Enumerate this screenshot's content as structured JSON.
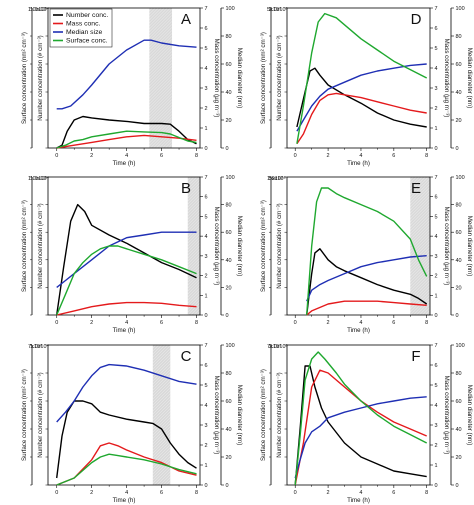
{
  "figure": {
    "axis_labels": {
      "x": "Time (h)",
      "y_left_outer": "Surface concentration (nm² cm⁻³)",
      "y_left_inner": "Number concentration (# cm⁻³)",
      "y_right_inner": "Mass concentration (µg m⁻³)",
      "y_right_outer": "Median diameter (nm)"
    },
    "legend": [
      "Number conc.",
      "Mass conc.",
      "Median size",
      "Surface conc."
    ],
    "colors": {
      "number": "#000000",
      "mass": "#e41a1c",
      "median": "#1f2fb4",
      "surface": "#1fa82f",
      "shade": "#cfcfcf"
    },
    "x_ticks": [
      "0",
      "2",
      "4",
      "6",
      "8"
    ],
    "right_inner_ticks": [
      "0",
      "1",
      "2",
      "3",
      "4",
      "5",
      "6",
      "7"
    ],
    "right_outer_ticks": [
      "0",
      "20",
      "40",
      "60",
      "80",
      "100"
    ]
  },
  "chart_data": [
    {
      "type": "line",
      "panel": "A",
      "xlabel": "Time (h)",
      "xlim": [
        -0.5,
        8.2
      ],
      "shade": [
        5.3,
        6.6
      ],
      "surface_top_label": "1.0x10⁸",
      "number_top_label": "1.0x10⁴",
      "series": [
        {
          "name": "Number conc.",
          "x": [
            0,
            0.3,
            0.6,
            1,
            1.5,
            2,
            3,
            4,
            5,
            6,
            6.5,
            7,
            7.5,
            8
          ],
          "values": [
            0,
            0.02,
            0.12,
            0.2,
            0.225,
            0.215,
            0.2,
            0.19,
            0.175,
            0.175,
            0.17,
            0.12,
            0.06,
            0.03
          ]
        },
        {
          "name": "Mass conc.",
          "x": [
            0,
            1,
            2,
            3,
            4,
            5,
            6,
            7,
            8
          ],
          "values": [
            0,
            0.02,
            0.04,
            0.06,
            0.08,
            0.09,
            0.08,
            0.07,
            0.055
          ]
        },
        {
          "name": "Median size",
          "x": [
            0,
            0.3,
            0.8,
            1.5,
            2,
            3,
            4,
            5,
            5.4,
            6,
            7,
            8
          ],
          "values": [
            0.28,
            0.28,
            0.3,
            0.38,
            0.45,
            0.6,
            0.7,
            0.77,
            0.77,
            0.75,
            0.73,
            0.72
          ]
        },
        {
          "name": "Surface conc.",
          "x": [
            0,
            0.5,
            1,
            1.5,
            2,
            3,
            4,
            5,
            6,
            6.5,
            7,
            7.5,
            8
          ],
          "values": [
            0,
            0.02,
            0.05,
            0.06,
            0.08,
            0.1,
            0.12,
            0.115,
            0.11,
            0.1,
            0.075,
            0.05,
            0.04
          ]
        }
      ]
    },
    {
      "type": "line",
      "panel": "D",
      "xlabel": "Time (h)",
      "xlim": [
        -0.5,
        8.2
      ],
      "surface_top_label": "5x10⁹",
      "number_top_label": "2.0x10⁵",
      "series": [
        {
          "name": "Number conc.",
          "x": [
            0.1,
            0.5,
            0.9,
            1.2,
            1.5,
            2,
            3,
            4,
            5,
            6,
            7,
            8
          ],
          "values": [
            0.15,
            0.35,
            0.55,
            0.57,
            0.52,
            0.45,
            0.38,
            0.32,
            0.25,
            0.2,
            0.17,
            0.15
          ]
        },
        {
          "name": "Mass conc.",
          "x": [
            0.1,
            0.5,
            1,
            1.5,
            2,
            2.5,
            3,
            4,
            5,
            6,
            7,
            8
          ],
          "values": [
            0.03,
            0.1,
            0.24,
            0.34,
            0.38,
            0.39,
            0.38,
            0.36,
            0.33,
            0.3,
            0.27,
            0.25
          ]
        },
        {
          "name": "Median size",
          "x": [
            0.1,
            0.5,
            1,
            1.5,
            2,
            3,
            4,
            5,
            6,
            7,
            8
          ],
          "values": [
            0.12,
            0.2,
            0.3,
            0.37,
            0.42,
            0.47,
            0.52,
            0.55,
            0.57,
            0.59,
            0.6
          ]
        },
        {
          "name": "Surface conc.",
          "x": [
            0.1,
            0.5,
            1,
            1.4,
            1.8,
            2.5,
            3,
            4,
            5,
            6,
            7,
            8
          ],
          "values": [
            0.03,
            0.3,
            0.68,
            0.9,
            0.96,
            0.93,
            0.88,
            0.78,
            0.7,
            0.62,
            0.56,
            0.5
          ]
        }
      ]
    },
    {
      "type": "line",
      "panel": "B",
      "xlabel": "Time (h)",
      "xlim": [
        -0.5,
        8.2
      ],
      "shade": [
        7.5,
        8.2
      ],
      "surface_top_label": "1.0x10⁸",
      "number_top_label": "1.0x10⁴",
      "series": [
        {
          "name": "Number conc.",
          "x": [
            0,
            0.4,
            0.8,
            1.2,
            1.6,
            2,
            3,
            4,
            5,
            6,
            7,
            8
          ],
          "values": [
            0,
            0.35,
            0.68,
            0.8,
            0.75,
            0.65,
            0.58,
            0.52,
            0.45,
            0.38,
            0.33,
            0.27
          ]
        },
        {
          "name": "Mass conc.",
          "x": [
            0,
            1,
            2,
            3,
            4,
            5,
            6,
            7,
            8
          ],
          "values": [
            0,
            0.03,
            0.06,
            0.08,
            0.09,
            0.09,
            0.085,
            0.07,
            0.06
          ]
        },
        {
          "name": "Median size",
          "x": [
            0,
            0.5,
            1,
            2,
            3,
            4,
            5,
            6,
            7,
            8
          ],
          "values": [
            0.2,
            0.25,
            0.3,
            0.4,
            0.5,
            0.56,
            0.58,
            0.6,
            0.6,
            0.6
          ]
        },
        {
          "name": "Surface conc.",
          "x": [
            0,
            0.5,
            1,
            1.5,
            2,
            2.5,
            3,
            3.5,
            4,
            5,
            6,
            7,
            8
          ],
          "values": [
            0,
            0.15,
            0.3,
            0.38,
            0.44,
            0.48,
            0.5,
            0.5,
            0.48,
            0.44,
            0.4,
            0.35,
            0.3
          ]
        }
      ]
    },
    {
      "type": "line",
      "panel": "E",
      "xlabel": "Time (h)",
      "xlim": [
        -0.5,
        8.2
      ],
      "shade": [
        7.0,
        8.2
      ],
      "surface_top_label": "1.0x10⁸",
      "number_top_label": "5x10³",
      "series": [
        {
          "name": "Number conc.",
          "x": [
            0.7,
            1,
            1.2,
            1.5,
            2,
            2.5,
            3,
            4,
            5,
            6,
            7,
            7.5,
            8
          ],
          "values": [
            0,
            0.3,
            0.45,
            0.48,
            0.4,
            0.35,
            0.32,
            0.27,
            0.22,
            0.18,
            0.15,
            0.12,
            0.08
          ]
        },
        {
          "name": "Mass conc.",
          "x": [
            0.7,
            1,
            2,
            3,
            4,
            5,
            6,
            7,
            8
          ],
          "values": [
            0,
            0.03,
            0.08,
            0.1,
            0.1,
            0.1,
            0.09,
            0.08,
            0.07
          ]
        },
        {
          "name": "Median size",
          "x": [
            0.7,
            1,
            1.5,
            2,
            3,
            4,
            5,
            6,
            7,
            8
          ],
          "values": [
            0.1,
            0.18,
            0.22,
            0.25,
            0.3,
            0.35,
            0.38,
            0.4,
            0.42,
            0.43
          ]
        },
        {
          "name": "Surface conc.",
          "x": [
            0.7,
            1,
            1.3,
            1.6,
            2,
            2.5,
            3,
            4,
            5,
            6,
            7,
            7.5,
            8
          ],
          "values": [
            0,
            0.5,
            0.82,
            0.92,
            0.92,
            0.88,
            0.85,
            0.8,
            0.75,
            0.68,
            0.55,
            0.4,
            0.28
          ]
        }
      ]
    },
    {
      "type": "line",
      "panel": "C",
      "xlabel": "Time (h)",
      "xlim": [
        -0.5,
        8.2
      ],
      "shade": [
        5.5,
        6.5
      ],
      "surface_top_label": "7x10⁸",
      "number_top_label": "1.0x10⁴",
      "series": [
        {
          "name": "Number conc.",
          "x": [
            0,
            0.3,
            0.6,
            1,
            1.5,
            2,
            2.5,
            3,
            4,
            5,
            5.5,
            6,
            6.5,
            7,
            7.5,
            8
          ],
          "values": [
            0.05,
            0.35,
            0.52,
            0.6,
            0.6,
            0.58,
            0.52,
            0.5,
            0.47,
            0.45,
            0.44,
            0.4,
            0.3,
            0.22,
            0.16,
            0.12
          ]
        },
        {
          "name": "Mass conc.",
          "x": [
            0,
            1,
            2,
            2.5,
            3,
            3.5,
            4,
            5,
            6,
            6.5,
            7,
            8
          ],
          "values": [
            0,
            0.05,
            0.18,
            0.28,
            0.3,
            0.28,
            0.25,
            0.2,
            0.16,
            0.13,
            0.1,
            0.07
          ]
        },
        {
          "name": "Median size",
          "x": [
            0,
            0.5,
            1,
            1.5,
            2,
            2.5,
            3,
            4,
            5,
            6,
            7,
            8
          ],
          "values": [
            0.45,
            0.52,
            0.6,
            0.7,
            0.78,
            0.84,
            0.86,
            0.85,
            0.82,
            0.78,
            0.74,
            0.72
          ]
        },
        {
          "name": "Surface conc.",
          "x": [
            0,
            1,
            2,
            2.5,
            3,
            3.5,
            4,
            5,
            6,
            7,
            8
          ],
          "values": [
            0,
            0.05,
            0.16,
            0.2,
            0.22,
            0.21,
            0.2,
            0.18,
            0.15,
            0.11,
            0.08
          ]
        }
      ]
    },
    {
      "type": "line",
      "panel": "F",
      "xlabel": "Time (h)",
      "xlim": [
        -0.5,
        8.2
      ],
      "surface_top_label": "7x10⁹",
      "number_top_label": "2.0x10⁵",
      "series": [
        {
          "name": "Number conc.",
          "x": [
            0,
            0.3,
            0.6,
            0.9,
            1.2,
            1.6,
            2,
            3,
            4,
            5,
            6,
            7,
            8
          ],
          "values": [
            0,
            0.4,
            0.85,
            0.85,
            0.7,
            0.55,
            0.45,
            0.3,
            0.2,
            0.15,
            0.1,
            0.08,
            0.06
          ]
        },
        {
          "name": "Mass conc.",
          "x": [
            0,
            0.5,
            1,
            1.5,
            2,
            2.5,
            3,
            4,
            5,
            6,
            7,
            8
          ],
          "values": [
            0,
            0.3,
            0.7,
            0.82,
            0.8,
            0.75,
            0.7,
            0.6,
            0.52,
            0.45,
            0.4,
            0.35
          ]
        },
        {
          "name": "Median size",
          "x": [
            0,
            0.3,
            0.6,
            1,
            1.5,
            2,
            3,
            4,
            5,
            6,
            7,
            8
          ],
          "values": [
            0.05,
            0.18,
            0.3,
            0.38,
            0.42,
            0.48,
            0.52,
            0.55,
            0.58,
            0.6,
            0.62,
            0.63
          ]
        },
        {
          "name": "Surface conc.",
          "x": [
            0,
            0.3,
            0.6,
            1,
            1.4,
            1.8,
            2.5,
            3,
            4,
            5,
            6,
            7,
            8
          ],
          "values": [
            0,
            0.35,
            0.75,
            0.9,
            0.95,
            0.9,
            0.8,
            0.72,
            0.6,
            0.5,
            0.42,
            0.36,
            0.3
          ]
        }
      ]
    }
  ]
}
